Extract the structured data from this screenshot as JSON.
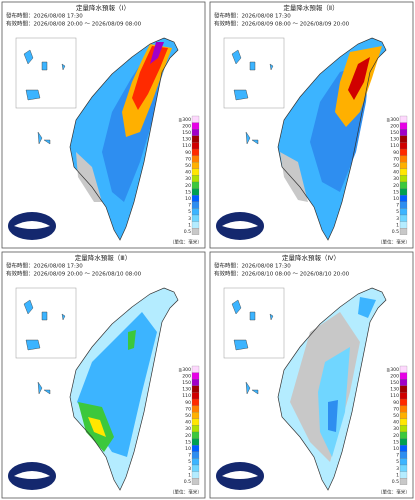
{
  "panels": [
    {
      "title": "定量降水預報（Ⅰ）",
      "issued": "發布時間：2026/08/08 17:30",
      "valid": "有效時間：2026/08/08 20:00 ～ 2026/08/09 08:00"
    },
    {
      "title": "定量降水預報（Ⅱ）",
      "issued": "發布時間：2026/08/08 17:30",
      "valid": "有效時間：2026/08/09 08:00 ～ 2026/08/09 20:00"
    },
    {
      "title": "定量降水預報（Ⅲ）",
      "issued": "發布時間：2026/08/08 17:30",
      "valid": "有效時間：2026/08/09 20:00 ～ 2026/08/10 08:00"
    },
    {
      "title": "定量降水預報（Ⅳ）",
      "issued": "發布時間：2026/08/08 17:30",
      "valid": "有效時間：2026/08/10 08:00 ～ 2026/08/10 20:00"
    }
  ],
  "legend": {
    "labels": [
      "≧300",
      "200",
      "150",
      "130",
      "110",
      "90",
      "70",
      "50",
      "40",
      "30",
      "20",
      "15",
      "10",
      "7",
      "5",
      "3",
      "1",
      "0.5"
    ],
    "colors": [
      "#fdd8fd",
      "#e600e6",
      "#a000c8",
      "#a00000",
      "#d00000",
      "#ff2a00",
      "#ff7f00",
      "#ffb000",
      "#ffe600",
      "#b0e000",
      "#3cc83c",
      "#00a050",
      "#0060ff",
      "#2e8ef0",
      "#3cb4ff",
      "#70d6ff",
      "#b4ecff",
      "#c8c8c8"
    ],
    "unit": "（單位：毫米）"
  }
}
